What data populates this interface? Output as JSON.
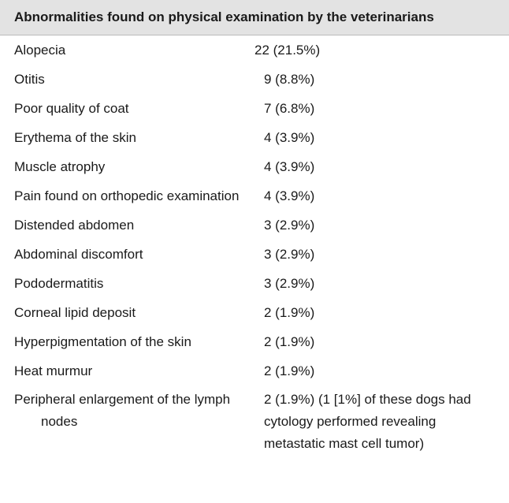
{
  "header": {
    "title": "Abnormalities found on physical examination by the veterinarians"
  },
  "table": {
    "rows": [
      [
        "Alopecia",
        "22 (21.5%)"
      ],
      [
        "Otitis",
        "9 (8.8%)"
      ],
      [
        "Poor quality of coat",
        "7 (6.8%)"
      ],
      [
        "Erythema of the skin",
        "4 (3.9%)"
      ],
      [
        "Muscle atrophy",
        "4 (3.9%)"
      ],
      [
        "Pain found on orthopedic examination",
        "4 (3.9%)"
      ],
      [
        "Distended abdomen",
        "3 (2.9%)"
      ],
      [
        "Abdominal discomfort",
        "3 (2.9%)"
      ],
      [
        "Pododermatitis",
        "3 (2.9%)"
      ],
      [
        "Corneal lipid deposit",
        "2 (1.9%)"
      ],
      [
        "Hyperpigmentation of the skin",
        "2 (1.9%)"
      ],
      [
        "Heat murmur",
        "2 (1.9%)"
      ],
      [
        "Peripheral enlargement of the lymph nodes",
        "2 (1.9%) (1 [1%] of these dogs had cytology performed revealing metastatic mast cell tumor)"
      ]
    ]
  }
}
